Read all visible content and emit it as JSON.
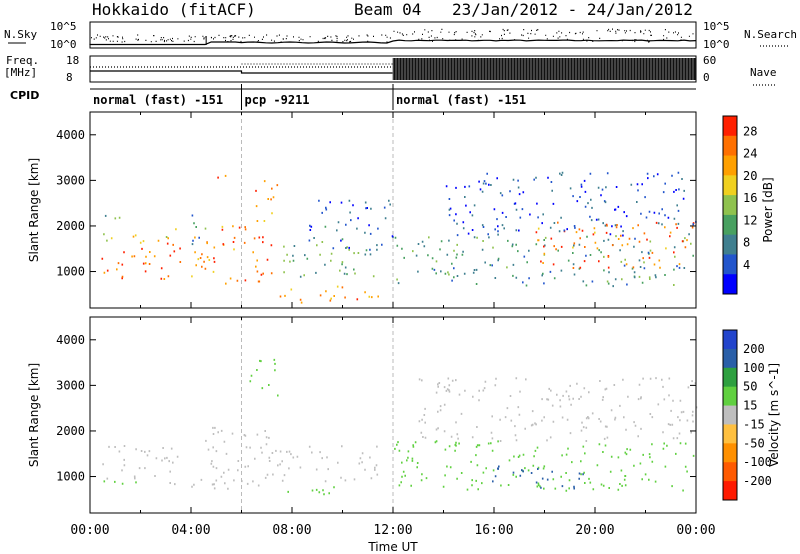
{
  "header": {
    "station": "Hokkaido (fitACF)",
    "beam": "Beam 04",
    "date_range": "23/Jan/2012 - 24/Jan/2012"
  },
  "top_panels": {
    "nsky_label": "N.Sky",
    "nsky_ticks": [
      "10^5",
      "10^0"
    ],
    "nsearch_label": "N.Search",
    "nsearch_ticks": [
      "10^5",
      "10^0"
    ],
    "freq_label": "Freq.",
    "freq_unit": "[MHz]",
    "freq_ticks": [
      "18",
      "8"
    ],
    "nave_label": "Nave",
    "nave_ticks": [
      "60",
      "0"
    ],
    "cpid_label": "CPID"
  },
  "cpid_segments": [
    {
      "label": "normal (fast) -151",
      "start_hour": 0,
      "end_hour": 6
    },
    {
      "label": "pcp -9211",
      "start_hour": 6,
      "end_hour": 12
    },
    {
      "label": "normal (fast) -151",
      "start_hour": 12,
      "end_hour": 24
    }
  ],
  "colors": {
    "power_scale": [
      "#0000ff",
      "#2255cc",
      "#3f7f8f",
      "#48a060",
      "#8fc24e",
      "#f0d020",
      "#ffa000",
      "#ff7000",
      "#ff2000"
    ],
    "velocity_scale": [
      "#ff1a00",
      "#ff5a00",
      "#ff9000",
      "#ffc040",
      "#bebebe",
      "#60d040",
      "#2ea040",
      "#2a5fa8",
      "#2244cc"
    ],
    "gray_scatter": "#bebebe"
  },
  "chart_data": [
    {
      "type": "heatmap",
      "name": "power",
      "xlabel": "Time UT",
      "ylabel": "Slant Range [km]",
      "xlim_hours": [
        0,
        24
      ],
      "ylim": [
        200,
        4500
      ],
      "x_ticks": [
        "00:00",
        "04:00",
        "08:00",
        "12:00",
        "16:00",
        "20:00",
        "00:00"
      ],
      "y_ticks": [
        1000,
        2000,
        3000,
        4000
      ],
      "colorbar_label": "Power [dB]",
      "colorbar_ticks": [
        "28",
        "24",
        "20",
        "16",
        "12",
        "8",
        "4"
      ],
      "zlim": [
        0,
        30
      ],
      "features": [
        {
          "t": [
            0.3,
            3.6
          ],
          "r": [
            850,
            1650
          ],
          "v": 26
        },
        {
          "t": [
            0.3,
            3.6
          ],
          "r": [
            1650,
            1950
          ],
          "v": 17
        },
        {
          "t": [
            0.5,
            1.2
          ],
          "r": [
            1950,
            2300
          ],
          "v": 12
        },
        {
          "t": [
            4.0,
            6.2
          ],
          "r": [
            750,
            2100
          ],
          "v": 24
        },
        {
          "t": [
            4.0,
            4.8
          ],
          "r": [
            1500,
            2300
          ],
          "v": 9
        },
        {
          "t": [
            6.0,
            7.2
          ],
          "r": [
            800,
            2000
          ],
          "v": 25
        },
        {
          "t": [
            6.5,
            7.5
          ],
          "r": [
            2100,
            3100
          ],
          "v": 22
        },
        {
          "t": [
            5.0,
            6.0
          ],
          "r": [
            2950,
            3150
          ],
          "v": 26
        },
        {
          "t": [
            7.5,
            11.5
          ],
          "r": [
            900,
            1700
          ],
          "v": 12
        },
        {
          "t": [
            8.5,
            12.0
          ],
          "r": [
            1500,
            2600
          ],
          "v": 6
        },
        {
          "t": [
            7.5,
            11.5
          ],
          "r": [
            300,
            700
          ],
          "v": 22
        },
        {
          "t": [
            12.0,
            24.0
          ],
          "r": [
            700,
            1800
          ],
          "v": 10
        },
        {
          "t": [
            17.5,
            24.0
          ],
          "r": [
            1100,
            2100
          ],
          "v": 24
        },
        {
          "t": [
            14.0,
            24.0
          ],
          "r": [
            1800,
            3200
          ],
          "v": 5
        }
      ]
    },
    {
      "type": "heatmap",
      "name": "velocity",
      "xlabel": "Time UT",
      "ylabel": "Slant Range [km]",
      "xlim_hours": [
        0,
        24
      ],
      "ylim": [
        200,
        4500
      ],
      "x_ticks": [
        "00:00",
        "04:00",
        "08:00",
        "12:00",
        "16:00",
        "20:00",
        "00:00"
      ],
      "y_ticks": [
        1000,
        2000,
        3000,
        4000
      ],
      "colorbar_label": "Velocity [m s^-1]",
      "colorbar_ticks": [
        "200",
        "100",
        "50",
        "15",
        "-15",
        "-50",
        "-100",
        "-200"
      ],
      "zlim": [
        -250,
        250
      ],
      "features": [
        {
          "t": [
            0.3,
            3.6
          ],
          "r": [
            850,
            1700
          ],
          "v": 0
        },
        {
          "t": [
            0.5,
            1.8
          ],
          "r": [
            700,
            950
          ],
          "v": 40
        },
        {
          "t": [
            4.0,
            6.2
          ],
          "r": [
            750,
            2100
          ],
          "v": 0
        },
        {
          "t": [
            6.0,
            7.5
          ],
          "r": [
            800,
            2300
          ],
          "v": 0
        },
        {
          "t": [
            6.3,
            7.5
          ],
          "r": [
            2800,
            3600
          ],
          "v": 40
        },
        {
          "t": [
            7.5,
            11.5
          ],
          "r": [
            900,
            1700
          ],
          "v": 0
        },
        {
          "t": [
            7.8,
            10.5
          ],
          "r": [
            550,
            800
          ],
          "v": 40
        },
        {
          "t": [
            12.0,
            24.0
          ],
          "r": [
            700,
            1800
          ],
          "v": 20
        },
        {
          "t": [
            13.0,
            24.0
          ],
          "r": [
            1800,
            3200
          ],
          "v": 0
        },
        {
          "t": [
            15.5,
            19.5
          ],
          "r": [
            750,
            1250
          ],
          "v": 120
        }
      ]
    }
  ]
}
